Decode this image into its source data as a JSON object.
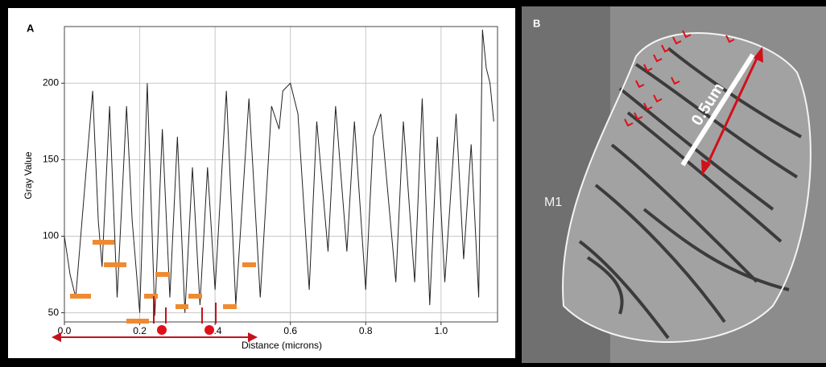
{
  "chart_data": {
    "type": "line",
    "panel_label": "A",
    "xlabel": "Distance (microns)",
    "ylabel": "Gray Value",
    "x": [
      0,
      0.015,
      0.03,
      0.05,
      0.075,
      0.09,
      0.1,
      0.12,
      0.14,
      0.165,
      0.18,
      0.2,
      0.22,
      0.24,
      0.26,
      0.28,
      0.3,
      0.32,
      0.34,
      0.36,
      0.38,
      0.4,
      0.43,
      0.455,
      0.49,
      0.52,
      0.55,
      0.57,
      0.58,
      0.6,
      0.62,
      0.65,
      0.67,
      0.7,
      0.72,
      0.75,
      0.77,
      0.8,
      0.82,
      0.84,
      0.88,
      0.9,
      0.93,
      0.95,
      0.97,
      0.99,
      1.01,
      1.04,
      1.06,
      1.08,
      1.1,
      1.11,
      1.12,
      1.13,
      1.14
    ],
    "series": [
      {
        "color": "#222222",
        "values": [
          100,
          75,
          60,
          120,
          195,
          110,
          80,
          185,
          60,
          185,
          110,
          50,
          200,
          48,
          170,
          60,
          165,
          50,
          145,
          55,
          145,
          65,
          195,
          55,
          190,
          60,
          185,
          170,
          195,
          200,
          180,
          65,
          175,
          90,
          185,
          90,
          175,
          65,
          165,
          180,
          70,
          175,
          70,
          190,
          55,
          165,
          70,
          180,
          85,
          160,
          60,
          235,
          210,
          200,
          175
        ]
      }
    ],
    "xlim": [
      0,
      1.15
    ],
    "ylim": [
      44,
      237
    ],
    "xticks": [
      {
        "value": 0,
        "label": "0.0"
      },
      0.2,
      0.4,
      0.6,
      0.8,
      {
        "value": 1,
        "label": "1.0"
      }
    ],
    "yticks": [
      50,
      100,
      150,
      200
    ],
    "grid": true
  },
  "image_panel": {
    "label": "B",
    "region_label": "M1",
    "scale_label": "0.5um"
  }
}
